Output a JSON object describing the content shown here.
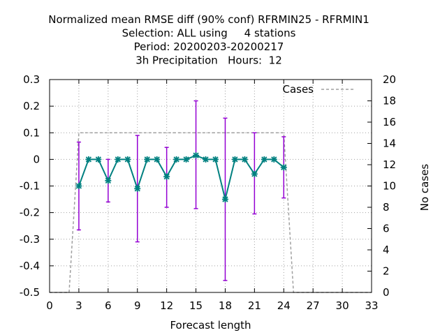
{
  "chart_data": {
    "type": "line",
    "title_lines": [
      "Normalized mean RMSE diff (90% conf) RFRMIN25 - RFRMIN1",
      "Selection: ALL using     4 stations",
      "Period: 20200203-20200217",
      "3h Precipitation   Hours:  12"
    ],
    "xlabel": "Forecast length",
    "ylabel": "",
    "y2label": "No cases",
    "xlim": [
      0,
      33
    ],
    "ylim": [
      -0.5,
      0.3
    ],
    "y2lim": [
      0,
      20
    ],
    "xticks": [
      0,
      3,
      6,
      9,
      12,
      15,
      18,
      21,
      24,
      27,
      30,
      33
    ],
    "yticks": [
      -0.5,
      -0.4,
      -0.3,
      -0.2,
      -0.1,
      0,
      0.1,
      0.2,
      0.3
    ],
    "y2ticks": [
      0,
      2,
      4,
      6,
      8,
      10,
      12,
      14,
      16,
      18,
      20
    ],
    "grid": true,
    "legend_position": "top-right",
    "series": [
      {
        "x": [
          3,
          4,
          5,
          6,
          7,
          8,
          9,
          10,
          11,
          12,
          13,
          14,
          15,
          16,
          17,
          18,
          19,
          20,
          21,
          22,
          23,
          24
        ],
        "values": [
          -0.1,
          0.0,
          0.0,
          -0.08,
          0.0,
          0.0,
          -0.11,
          0.0,
          0.0,
          -0.065,
          0.0,
          0.0,
          0.015,
          0.0,
          0.0,
          -0.15,
          0.0,
          0.0,
          -0.055,
          0.0,
          0.0,
          -0.03
        ],
        "color": "#008080"
      }
    ],
    "error_bars": {
      "x": [
        3,
        6,
        9,
        12,
        15,
        18,
        21,
        24
      ],
      "low": [
        -0.265,
        -0.16,
        -0.31,
        -0.18,
        -0.185,
        -0.455,
        -0.205,
        -0.145
      ],
      "high": [
        0.065,
        0.0,
        0.09,
        0.045,
        0.22,
        0.155,
        0.1,
        0.085
      ],
      "color": "#9400d3"
    },
    "cases": {
      "name": "Cases",
      "x": [
        0,
        1,
        2,
        3,
        4,
        5,
        6,
        7,
        8,
        9,
        10,
        11,
        12,
        13,
        14,
        15,
        16,
        17,
        18,
        19,
        20,
        21,
        22,
        23,
        24,
        25,
        26,
        27,
        28,
        29,
        30,
        31,
        32,
        33
      ],
      "values": [
        0,
        0,
        0,
        15,
        15,
        15,
        15,
        15,
        15,
        15,
        15,
        15,
        15,
        15,
        15,
        15,
        15,
        15,
        15,
        15,
        15,
        15,
        15,
        15,
        15,
        0,
        0,
        0,
        0,
        0,
        0,
        0,
        0,
        0
      ],
      "color": "#a0a0a0"
    }
  }
}
